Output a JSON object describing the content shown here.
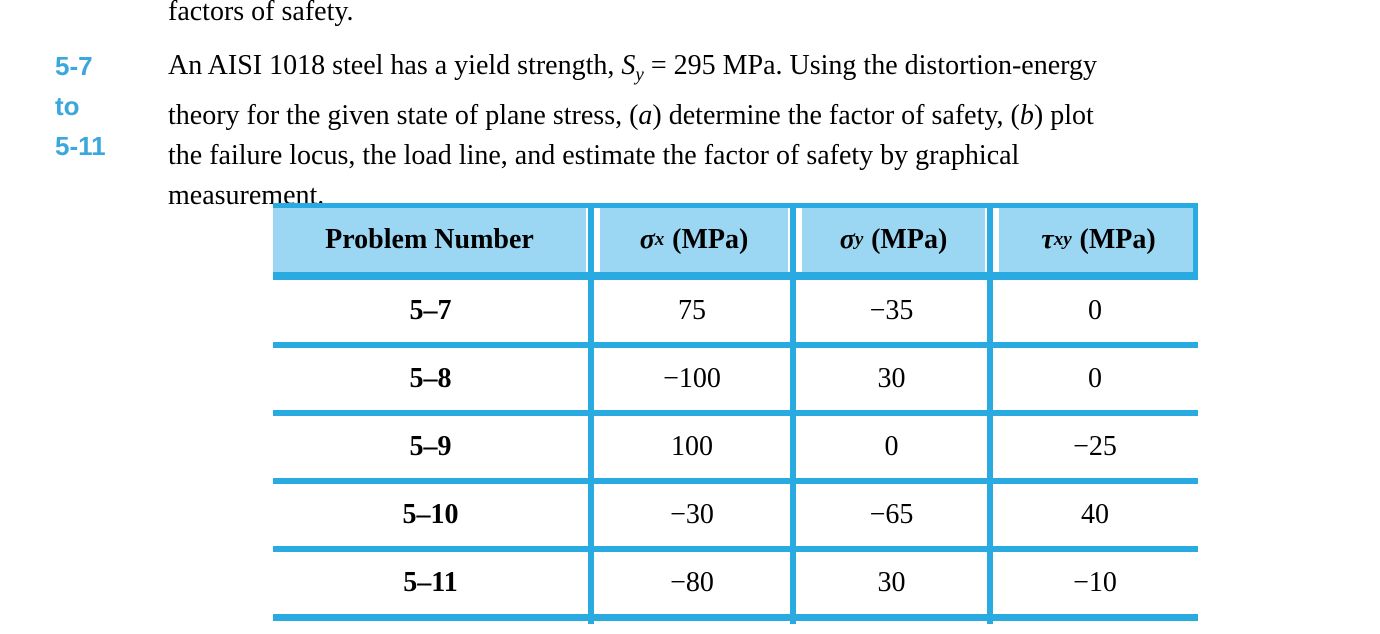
{
  "colors": {
    "rule_blue": "#29abe2",
    "header_fill": "#9bd7f3",
    "label_blue": "#3aa7dd",
    "text": "#000000",
    "background": "#ffffff"
  },
  "document": {
    "intro_tail": "factors of safety.",
    "problem_range": {
      "lines": [
        "5-7",
        "to",
        "5-11"
      ]
    },
    "problem_statement": {
      "lines": [
        {
          "segments": [
            {
              "t": "An AISI 1018 steel has a yield strength, "
            },
            {
              "t": "S",
              "i": true
            },
            {
              "t": "y",
              "i": true,
              "sub": true
            },
            {
              "t": " = 295 MPa. Using the distortion-energy"
            }
          ]
        },
        {
          "segments": [
            {
              "t": "theory for the given state of plane stress, ("
            },
            {
              "t": "a",
              "i": true
            },
            {
              "t": ") determine the factor of safety, ("
            },
            {
              "t": "b",
              "i": true
            },
            {
              "t": ") plot"
            }
          ]
        },
        {
          "segments": [
            {
              "t": "the failure locus, the load line, and estimate the factor of safety by graphical"
            }
          ]
        },
        {
          "segments": [
            {
              "t": "measurement."
            }
          ]
        }
      ]
    },
    "table": {
      "headers": [
        {
          "label": "Problem Number"
        },
        {
          "symbol": "σ",
          "subscript": "x",
          "unit": "(MPa)"
        },
        {
          "symbol": "σ",
          "subscript": "y",
          "unit": "(MPa)"
        },
        {
          "symbol": "τ",
          "subscript": "xy",
          "unit": "(MPa)"
        }
      ],
      "rows": [
        {
          "problem": "5–7",
          "sigma_x": "75",
          "sigma_y": "−35",
          "tau_xy": "0"
        },
        {
          "problem": "5–8",
          "sigma_x": "−100",
          "sigma_y": "30",
          "tau_xy": "0"
        },
        {
          "problem": "5–9",
          "sigma_x": "100",
          "sigma_y": "0",
          "tau_xy": "−25"
        },
        {
          "problem": "5–10",
          "sigma_x": "−30",
          "sigma_y": "−65",
          "tau_xy": "40"
        },
        {
          "problem": "5–11",
          "sigma_x": "−80",
          "sigma_y": "30",
          "tau_xy": "−10"
        }
      ]
    }
  }
}
